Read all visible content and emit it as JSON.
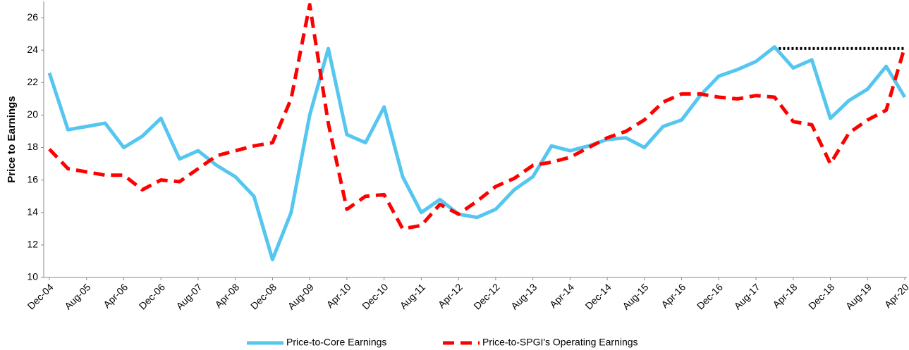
{
  "chart_data": {
    "type": "line",
    "y_label": "Price to Earnings",
    "categories": [
      "Dec-04",
      null,
      "Aug-05",
      null,
      "Apr-06",
      null,
      "Dec-06",
      null,
      "Aug-07",
      null,
      "Apr-08",
      null,
      "Dec-08",
      null,
      "Aug-09",
      null,
      "Apr-10",
      null,
      "Dec-10",
      null,
      "Aug-11",
      null,
      "Apr-12",
      null,
      "Dec-12",
      null,
      "Aug-13",
      null,
      "Apr-14",
      null,
      "Dec-14",
      null,
      "Aug-15",
      null,
      "Apr-16",
      null,
      "Dec-16",
      null,
      "Aug-17",
      null,
      "Apr-18",
      null,
      "Dec-18",
      null,
      "Aug-19",
      null,
      "Apr-20"
    ],
    "series": [
      {
        "name": "Price-to-Core Earnings",
        "color": "#55c6ef",
        "dashed": false,
        "values": [
          22.6,
          19.1,
          19.3,
          19.5,
          18.0,
          18.7,
          19.8,
          17.3,
          17.8,
          16.9,
          16.2,
          15.0,
          11.1,
          14.0,
          20.0,
          24.1,
          18.8,
          18.3,
          20.5,
          16.2,
          14.0,
          14.8,
          13.9,
          13.7,
          14.2,
          15.4,
          16.2,
          18.1,
          17.8,
          18.1,
          18.5,
          18.6,
          18.0,
          19.3,
          19.7,
          21.2,
          22.4,
          22.8,
          23.3,
          24.2,
          22.9,
          23.4,
          19.8,
          20.9,
          21.6,
          23.0,
          21.1
        ]
      },
      {
        "name": "Price-to-SPGI's Operating Earnings",
        "color": "#ff0000",
        "dashed": true,
        "values": [
          17.9,
          16.7,
          16.5,
          16.3,
          16.3,
          15.4,
          16.0,
          15.9,
          16.7,
          17.5,
          17.8,
          18.1,
          18.3,
          21.0,
          26.8,
          19.5,
          14.2,
          15.0,
          15.1,
          13.0,
          13.2,
          14.5,
          13.9,
          14.7,
          15.6,
          16.1,
          16.9,
          17.1,
          17.4,
          18.0,
          18.6,
          19.0,
          19.7,
          20.8,
          21.3,
          21.3,
          21.1,
          21.0,
          21.2,
          21.1,
          19.6,
          19.4,
          17.0,
          18.9,
          19.7,
          20.3,
          24.2
        ]
      }
    ],
    "reference_line": {
      "value": 24.1,
      "color": "#000000"
    },
    "ylim": [
      10,
      27
    ],
    "yticks": [
      10,
      12,
      14,
      16,
      18,
      20,
      22,
      24,
      26
    ],
    "grid": false,
    "legend": "bottom"
  }
}
